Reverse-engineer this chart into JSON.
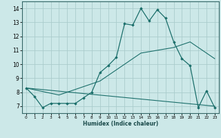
{
  "xlabel": "Humidex (Indice chaleur)",
  "background_color": "#cce8e8",
  "grid_color": "#aacccc",
  "line_color": "#1a6e6a",
  "xlim": [
    -0.5,
    23.5
  ],
  "ylim": [
    6.5,
    14.5
  ],
  "xticks": [
    0,
    1,
    2,
    3,
    4,
    5,
    6,
    7,
    8,
    9,
    10,
    11,
    12,
    13,
    14,
    15,
    16,
    17,
    18,
    19,
    20,
    21,
    22,
    23
  ],
  "yticks": [
    7,
    8,
    9,
    10,
    11,
    12,
    13,
    14
  ],
  "curve1_x": [
    0,
    1,
    2,
    3,
    4,
    5,
    6,
    7,
    8,
    9,
    10,
    11,
    12,
    13,
    14,
    15,
    16,
    17,
    18,
    19,
    20,
    21,
    22,
    23
  ],
  "curve1_y": [
    8.3,
    7.7,
    6.9,
    7.2,
    7.2,
    7.2,
    7.2,
    7.6,
    8.0,
    9.4,
    9.9,
    10.5,
    12.9,
    12.8,
    14.0,
    13.1,
    13.9,
    13.3,
    11.6,
    10.4,
    9.9,
    6.9,
    8.1,
    6.9
  ],
  "curve2_x": [
    0,
    23
  ],
  "curve2_y": [
    8.3,
    7.0
  ],
  "curve3_x": [
    0,
    4,
    9,
    14,
    18,
    20,
    23
  ],
  "curve3_y": [
    8.3,
    7.8,
    8.8,
    10.8,
    11.2,
    11.6,
    10.4
  ]
}
